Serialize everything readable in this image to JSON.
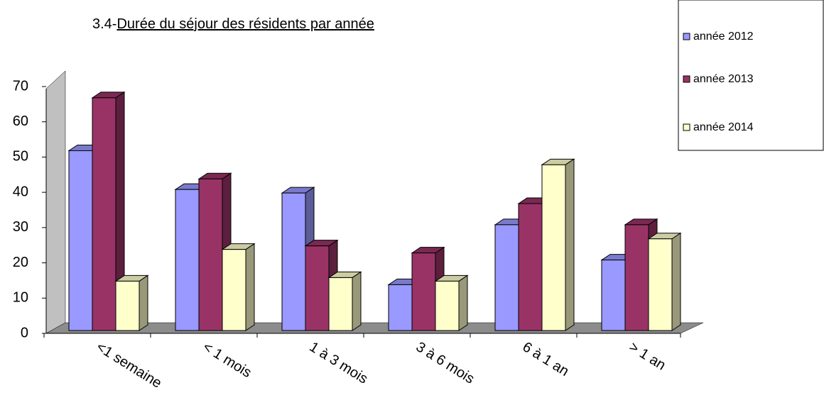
{
  "chart_data": {
    "type": "bar3d",
    "title_number": "3.4-",
    "title": "Durée du séjour des résidents par année",
    "categories": [
      "<1 semaine",
      "< 1 mois",
      "1 à 3 mois",
      "3 à 6 mois",
      "6 à 1 an",
      "> 1 an"
    ],
    "series": [
      {
        "name": "année 2012",
        "color": "#9999ff",
        "values": [
          51,
          40,
          39,
          13,
          30,
          20
        ]
      },
      {
        "name": "année 2013",
        "color": "#993366",
        "values": [
          66,
          43,
          24,
          22,
          36,
          30
        ]
      },
      {
        "name": "année 2014",
        "color": "#ffffcc",
        "values": [
          14,
          23,
          15,
          14,
          47,
          26
        ]
      }
    ],
    "ylim": [
      0,
      70
    ],
    "yticks": [
      0,
      10,
      20,
      30,
      40,
      50,
      60,
      70
    ],
    "legend": "top-right",
    "grid": false
  }
}
